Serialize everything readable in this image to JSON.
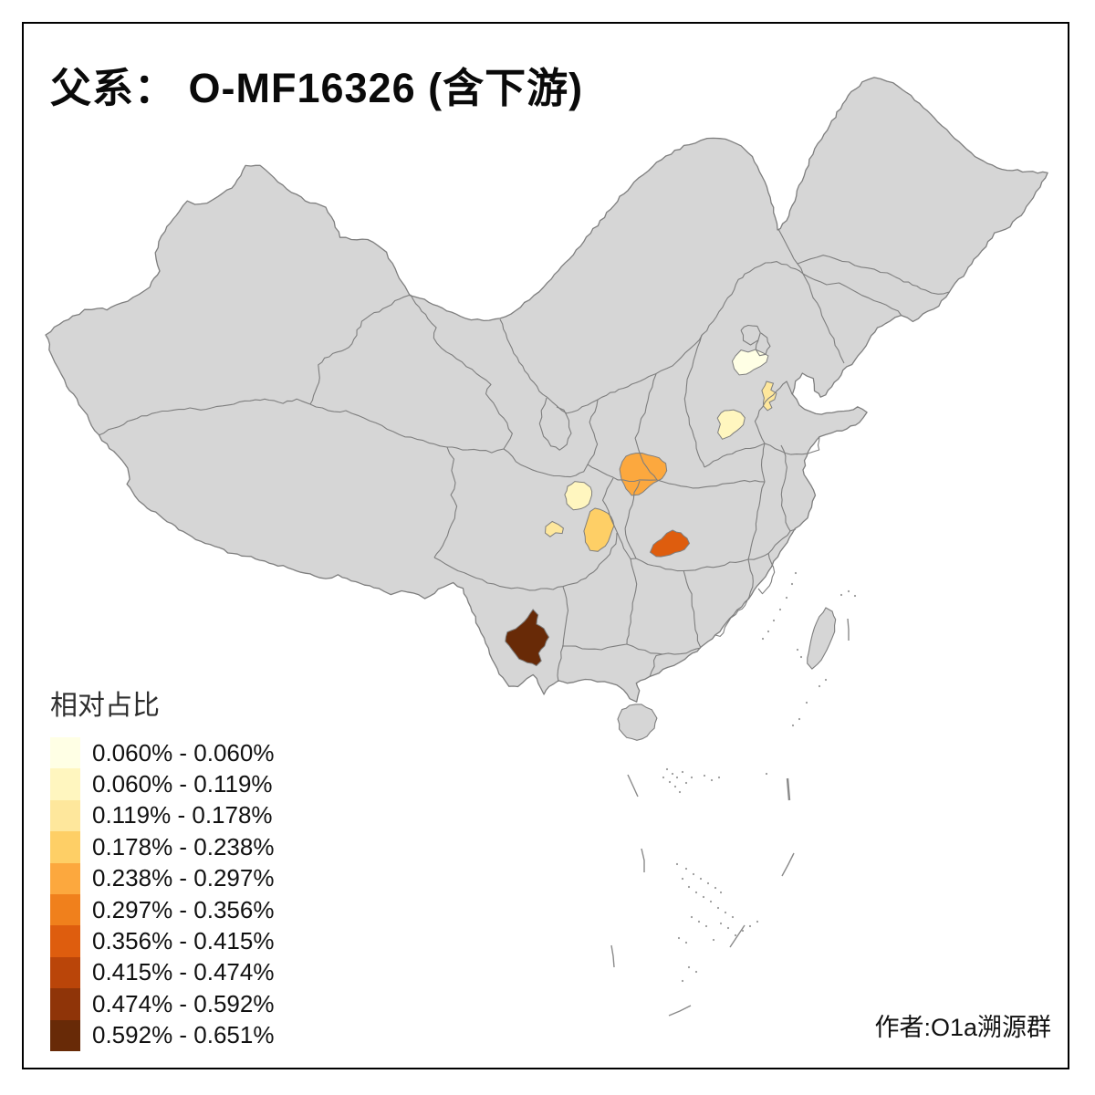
{
  "title": "父系： O-MF16326 (含下游)",
  "legend": {
    "title": "相对占比",
    "items": [
      {
        "label": "0.060% - 0.060%",
        "color": "#FFFFE5"
      },
      {
        "label": "0.060% - 0.119%",
        "color": "#FFF6BF"
      },
      {
        "label": "0.119% - 0.178%",
        "color": "#FEE79C"
      },
      {
        "label": "0.178% - 0.238%",
        "color": "#FECF66"
      },
      {
        "label": "0.238% - 0.297%",
        "color": "#FCA83E"
      },
      {
        "label": "0.297% - 0.356%",
        "color": "#F0801C"
      },
      {
        "label": "0.356% - 0.415%",
        "color": "#DE5D0E"
      },
      {
        "label": "0.415% - 0.474%",
        "color": "#BA4509"
      },
      {
        "label": "0.474% - 0.592%",
        "color": "#8F3408"
      },
      {
        "label": "0.592% - 0.651%",
        "color": "#682A07"
      }
    ]
  },
  "author": "作者:O1a溯源群",
  "map": {
    "background": "#FFFFFF",
    "land_color": "#D6D6D6",
    "border_color": "#7E7E7E",
    "regions": [
      {
        "id": "highlight-region-hebei",
        "bin": "0.060% - 0.060%",
        "color": "#FFFFE5"
      },
      {
        "id": "highlight-region-shandong-west",
        "bin": "0.119% - 0.178%",
        "color": "#FEE79C"
      },
      {
        "id": "highlight-region-henan-north",
        "bin": "0.060% - 0.119%",
        "color": "#FFF6BF"
      },
      {
        "id": "highlight-region-shaanxi-central",
        "bin": "0.238% - 0.297%",
        "color": "#FCA83E"
      },
      {
        "id": "highlight-region-sichuan-north",
        "bin": "0.060% - 0.119%",
        "color": "#FFF6BF"
      },
      {
        "id": "highlight-region-sichuan-west",
        "bin": "0.119% - 0.178%",
        "color": "#FEE79C"
      },
      {
        "id": "highlight-region-sichuan-central",
        "bin": "0.178% - 0.238%",
        "color": "#FECF66"
      },
      {
        "id": "highlight-region-hubei-west",
        "bin": "0.356% - 0.415%",
        "color": "#DE5D0E"
      },
      {
        "id": "highlight-region-yunnan-south",
        "bin": "0.592% - 0.651%",
        "color": "#682A07"
      }
    ]
  }
}
